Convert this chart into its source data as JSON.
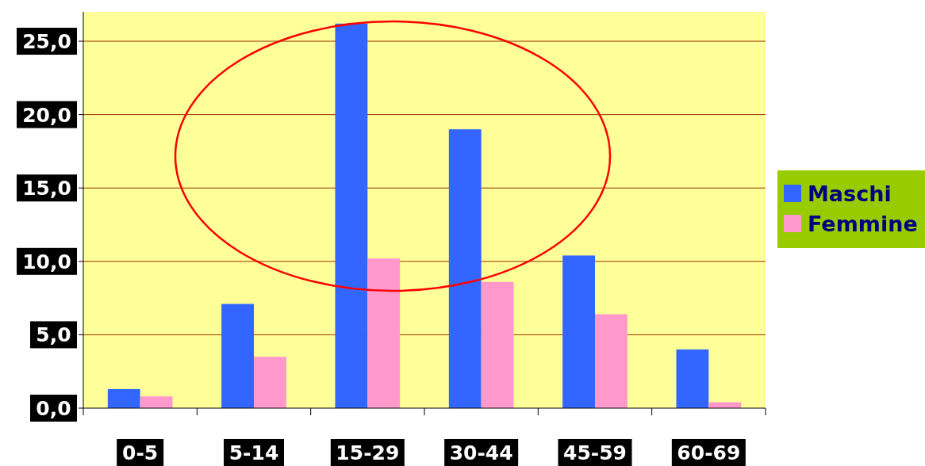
{
  "chart_data": {
    "type": "bar",
    "categories": [
      "0-5",
      "5-14",
      "15-29",
      "30-44",
      "45-59",
      "60-69"
    ],
    "series": [
      {
        "name": "Maschi",
        "color": "#3366ff",
        "values": [
          1.3,
          7.1,
          26.2,
          19.0,
          10.4,
          4.0
        ]
      },
      {
        "name": "Femmine",
        "color": "#ff99cc",
        "values": [
          0.8,
          3.5,
          10.2,
          8.6,
          6.4,
          0.4
        ]
      }
    ],
    "ylim": [
      0,
      27
    ],
    "yticks": [
      {
        "value": 0,
        "label": "0,0"
      },
      {
        "value": 5,
        "label": "5,0"
      },
      {
        "value": 10,
        "label": "10,0"
      },
      {
        "value": 15,
        "label": "15,0"
      },
      {
        "value": 20,
        "label": "20,0"
      },
      {
        "value": 25,
        "label": "25,0"
      }
    ],
    "grid": "y",
    "legend": "right"
  }
}
